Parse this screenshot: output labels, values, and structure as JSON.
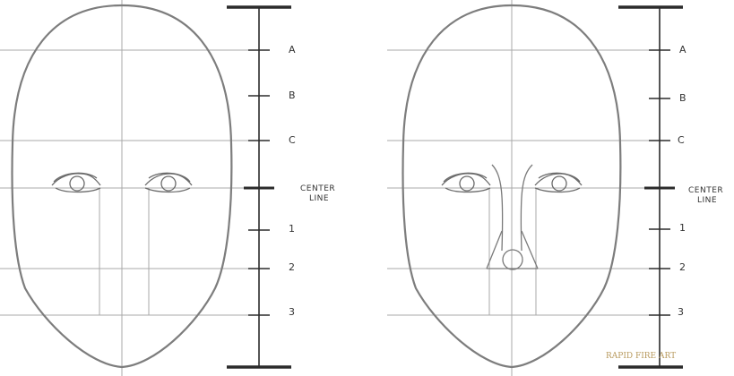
{
  "panels": [
    {
      "id": "left",
      "marks": [
        "A",
        "B",
        "C",
        "CENTER LINE",
        "1",
        "2",
        "3"
      ],
      "has_nose": false
    },
    {
      "id": "right",
      "marks": [
        "A",
        "B",
        "C",
        "CENTER LINE",
        "1",
        "2",
        "3"
      ],
      "has_nose": true
    }
  ],
  "center_line_label_1": "CENTER",
  "center_line_label_2": "LINE",
  "watermark": "RAPID FIRE ART",
  "colors": {
    "guide": "#a9a9a9",
    "outline": "#7d7d7d",
    "ruler": "#2b2b2b",
    "watermark": "#b89a5e"
  }
}
